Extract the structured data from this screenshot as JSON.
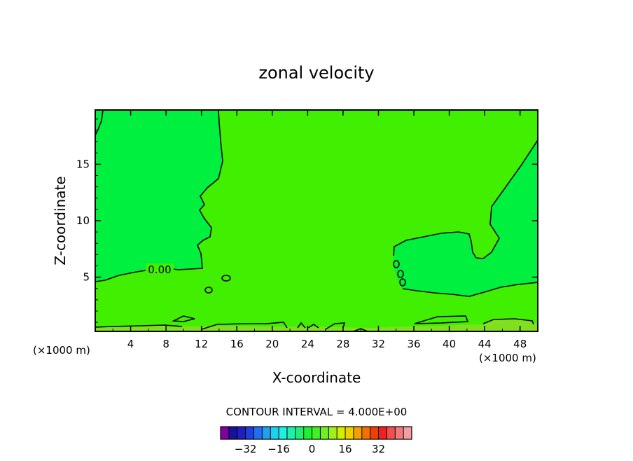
{
  "chart_data": {
    "type": "heatmap",
    "title": "zonal velocity",
    "xlabel": "X-coordinate",
    "ylabel": "Z-coordinate",
    "x_unit": "(×1000 m)",
    "xlim": [
      0,
      50
    ],
    "ylim": [
      0.2,
      19.8
    ],
    "x_ticks": [
      4,
      8,
      12,
      16,
      20,
      24,
      28,
      32,
      36,
      40,
      44,
      48
    ],
    "y_ticks": [
      5,
      10,
      15
    ],
    "contour_label": "0.00",
    "contour_interval_text": "CONTOUR INTERVAL = 4.000E+00",
    "colorbar": {
      "colors": [
        "#8000a0",
        "#1a0fa0",
        "#1f1fc0",
        "#1f3fe0",
        "#1f6ff0",
        "#1fa0f0",
        "#1fd0f0",
        "#1ff0e0",
        "#1ff0b0",
        "#1ff070",
        "#1ff030",
        "#40f020",
        "#70f020",
        "#a0f020",
        "#d0f000",
        "#f0d000",
        "#f0a000",
        "#f07000",
        "#f04000",
        "#f02020",
        "#f05050",
        "#f07a7a",
        "#f0a0a0"
      ],
      "tick_values": [
        -32,
        -16,
        0,
        16,
        32
      ]
    },
    "fill_colors": {
      "slightly_negative": "#00f040",
      "slightly_positive": "#40f000",
      "positive_band": "#80e020"
    },
    "regions": [
      {
        "name": "negative-region-upper-left",
        "level": "slightly_negative"
      },
      {
        "name": "negative-region-right",
        "level": "slightly_negative"
      },
      {
        "name": "positive-region-center",
        "level": "slightly_positive"
      },
      {
        "name": "positive-band-surface",
        "level": "positive_band"
      }
    ]
  }
}
